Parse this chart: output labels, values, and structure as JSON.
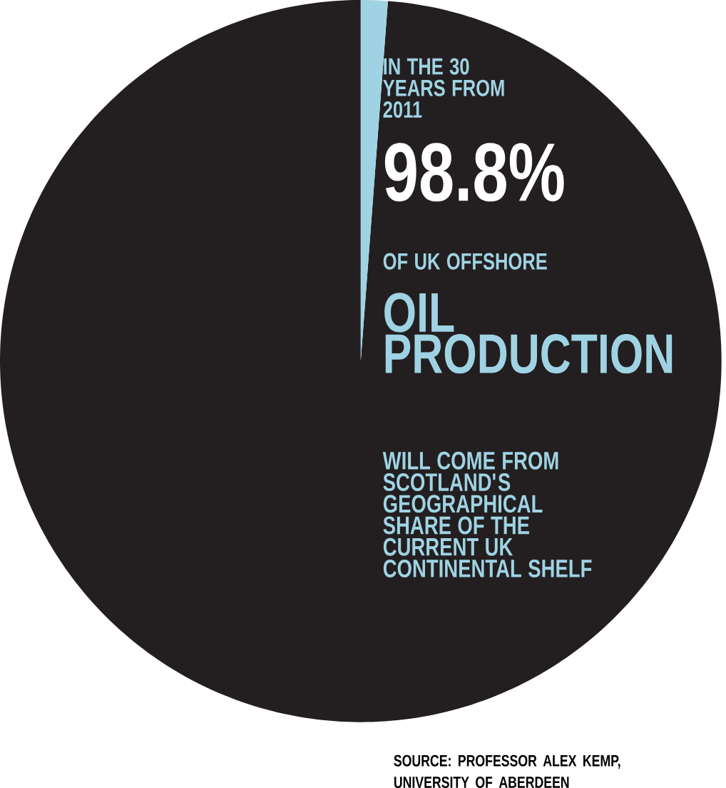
{
  "chart_data": {
    "type": "pie",
    "categories": [
      null,
      null
    ],
    "values": [
      98.8,
      1.2
    ],
    "colors": [
      "#231f20",
      "#9fd3e3"
    ],
    "value_labels": [
      "98.8%",
      null
    ],
    "annotations": [
      "IN THE 30 YEARS FROM 2011",
      "OF UK OFFSHORE",
      "OIL PRODUCTION",
      "WILL COME FROM SCOTLAND'S GEOGRAPHICAL SHARE OF THE CURRENT UK CONTINENTAL SHELF",
      "SOURCE: PROFESSOR ALEX KEMP, UNIVERSITY OF ABERDEEN"
    ]
  }
}
